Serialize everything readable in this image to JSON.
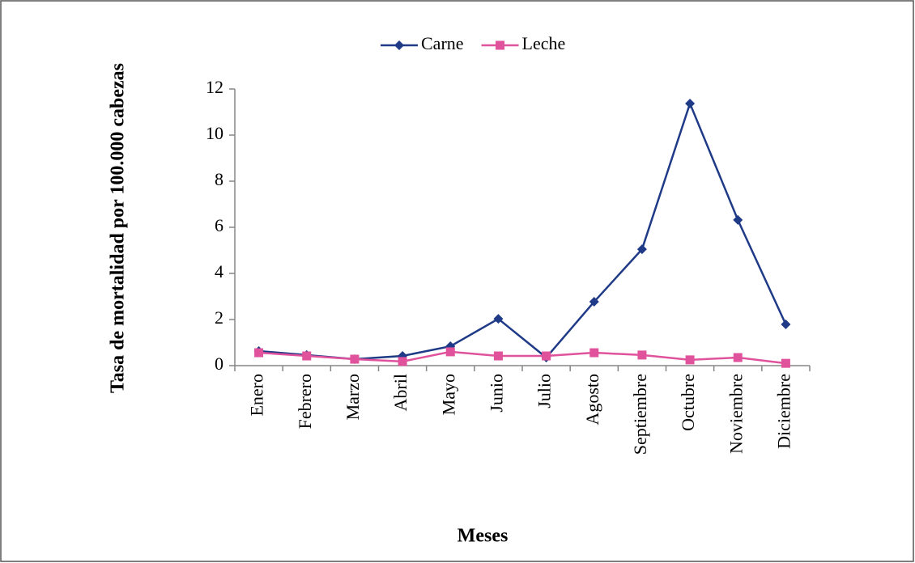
{
  "chart_data": {
    "type": "line",
    "x_label": "Meses",
    "y_label": "Tasa de mortalidad por 100.000 cabezas",
    "categories": [
      "Enero",
      "Febrero",
      "Marzo",
      "Abril",
      "Mayo",
      "Junio",
      "Julio",
      "Agosto",
      "Septiembre",
      "Octubre",
      "Noviembre",
      "Diciembre"
    ],
    "series": [
      {
        "name": "Carne",
        "color": "#1f3a87",
        "marker": "diamond",
        "values": [
          0.63,
          0.46,
          0.28,
          0.42,
          0.84,
          2.03,
          0.35,
          2.77,
          5.05,
          11.37,
          6.32,
          1.79
        ]
      },
      {
        "name": "Leche",
        "color": "#e0529c",
        "marker": "square",
        "values": [
          0.56,
          0.42,
          0.28,
          0.18,
          0.6,
          0.42,
          0.42,
          0.56,
          0.46,
          0.25,
          0.35,
          0.1
        ]
      }
    ],
    "ylim": [
      0,
      12
    ],
    "yticks": [
      0,
      2,
      4,
      6,
      8,
      10,
      12
    ],
    "legend": "top"
  }
}
